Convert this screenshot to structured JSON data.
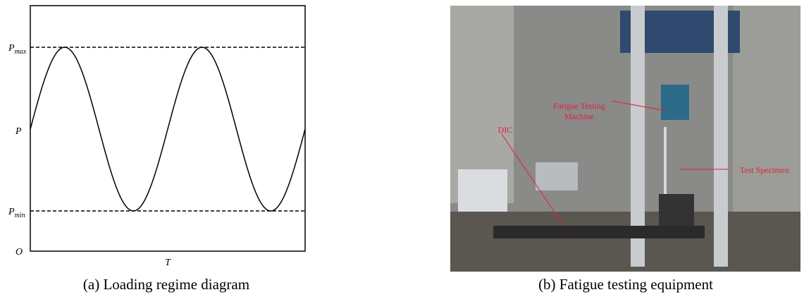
{
  "panel_a": {
    "y_labels": [
      {
        "symbol": "P",
        "subscript": "max"
      },
      {
        "symbol": "P"
      },
      {
        "symbol": "P",
        "subscript": "min"
      },
      {
        "symbol": "O"
      }
    ],
    "x_label": "T",
    "caption": "(a) Loading regime diagram"
  },
  "panel_b": {
    "annotations": [
      "Fatigue Testing",
      "Machine",
      "DIC",
      "Test Specimen"
    ],
    "caption": "(b) Fatigue testing equipment"
  }
}
